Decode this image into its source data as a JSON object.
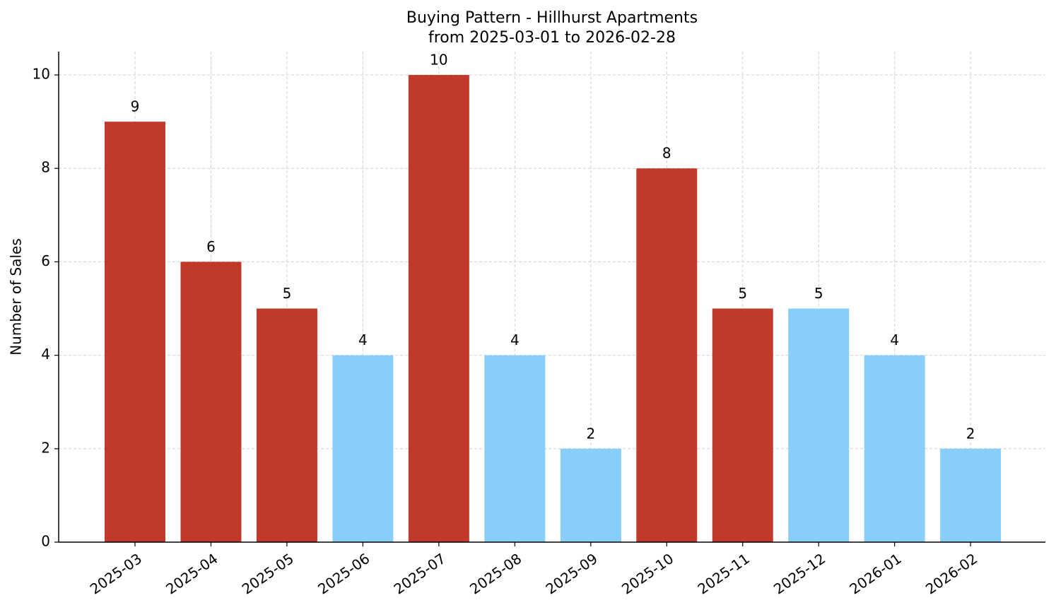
{
  "chart_data": {
    "type": "bar",
    "title": "Buying Pattern - Hillhurst Apartments",
    "subtitle": "from 2025-03-01 to 2026-02-28",
    "y_label": "Number of Sales",
    "categories": [
      "2025-03",
      "2025-04",
      "2025-05",
      "2025-06",
      "2025-07",
      "2025-08",
      "2025-09",
      "2025-10",
      "2025-11",
      "2025-12",
      "2026-01",
      "2026-02"
    ],
    "values": [
      9,
      6,
      5,
      4,
      10,
      4,
      2,
      8,
      5,
      5,
      4,
      2
    ],
    "colors": [
      "#c0392b",
      "#c0392b",
      "#c0392b",
      "#87cefa",
      "#c0392b",
      "#87cefa",
      "#87cefa",
      "#c0392b",
      "#c0392b",
      "#87cefa",
      "#87cefa",
      "#87cefa"
    ],
    "ylim": [
      0,
      10.5
    ],
    "yticks": [
      0,
      2,
      4,
      6,
      8,
      10
    ],
    "grid": true
  }
}
